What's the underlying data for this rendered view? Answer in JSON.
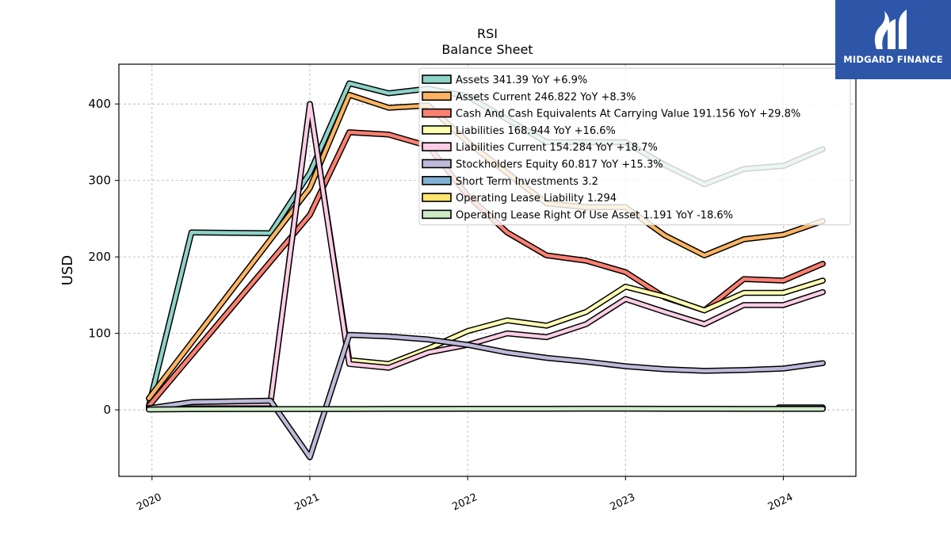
{
  "brand": {
    "name": "MIDGARD FINANCE",
    "bg_color": "#2d56a8"
  },
  "chart_data": {
    "type": "line",
    "title": "RSI",
    "subtitle": "Balance  Sheet",
    "ylabel": "USD",
    "xlabel": "",
    "ylim": [
      -87,
      452
    ],
    "yticks": [
      0,
      100,
      200,
      300,
      400
    ],
    "xlim": [
      2019.79,
      2024.46
    ],
    "xticks": [
      2020,
      2021,
      2022,
      2023,
      2024
    ],
    "xtick_labels": [
      "2020",
      "2021",
      "2022",
      "2023",
      "2024"
    ],
    "grid": true,
    "legend_position": "top-right",
    "series": [
      {
        "name": "Assets  341.39 YoY +6.9%",
        "color": "#8dd3c7",
        "x": [
          2019.98,
          2020.25,
          2020.75,
          2021.0,
          2021.25,
          2021.5,
          2021.75,
          2022.0,
          2022.25,
          2022.5,
          2022.75,
          2023.0,
          2023.25,
          2023.5,
          2023.75,
          2024.0,
          2024.25
        ],
        "y": [
          5,
          232,
          231,
          310,
          427,
          414,
          420,
          410,
          380,
          350,
          350,
          350,
          320,
          295,
          315,
          319,
          341
        ]
      },
      {
        "name": "Assets Current  246.822 YoY +8.3%",
        "color": "#fdb462",
        "x": [
          2019.98,
          2021.0,
          2021.25,
          2021.5,
          2021.75,
          2022.0,
          2022.25,
          2022.5,
          2022.75,
          2023.0,
          2023.25,
          2023.5,
          2023.75,
          2024.0,
          2024.25
        ],
        "y": [
          15,
          290,
          412,
          395,
          398,
          350,
          310,
          270,
          265,
          265,
          228,
          202,
          223,
          229,
          247
        ]
      },
      {
        "name": "Cash And Cash Equivalents At Carrying Value  191.156 YoY +29.8%",
        "color": "#fb8072",
        "x": [
          2019.98,
          2021.0,
          2021.25,
          2021.5,
          2021.75,
          2022.0,
          2022.25,
          2022.5,
          2022.75,
          2023.0,
          2023.25,
          2023.5,
          2023.75,
          2024.0,
          2024.25
        ],
        "y": [
          5,
          255,
          363,
          360,
          345,
          280,
          232,
          202,
          195,
          180,
          147,
          130,
          171,
          169,
          191
        ]
      },
      {
        "name": "Liabilities  168.944 YoY +16.6%",
        "color": "#ffffb3",
        "x": [
          2019.98,
          2020.25,
          2020.75,
          2021.0,
          2021.25,
          2021.5,
          2021.75,
          2022.0,
          2022.25,
          2022.5,
          2022.75,
          2023.0,
          2023.25,
          2023.5,
          2023.75,
          2024.0,
          2024.25
        ],
        "y": [
          2,
          8,
          8,
          400,
          65,
          60,
          80,
          103,
          117,
          110,
          128,
          161,
          148,
          130,
          153,
          153,
          169
        ]
      },
      {
        "name": "Liabilities Current  154.284 YoY +18.7%",
        "color": "#fccde5",
        "x": [
          2019.98,
          2020.25,
          2020.75,
          2021.0,
          2021.25,
          2021.5,
          2021.75,
          2022.0,
          2022.25,
          2022.5,
          2022.75,
          2023.0,
          2023.25,
          2023.5,
          2023.75,
          2024.0,
          2024.25
        ],
        "y": [
          2,
          8,
          8,
          400,
          60,
          55,
          75,
          85,
          100,
          95,
          112,
          145,
          128,
          112,
          137,
          137,
          154
        ]
      },
      {
        "name": "Stockholders Equity  60.817 YoY +15.3%",
        "color": "#bebada",
        "x": [
          2019.98,
          2020.25,
          2020.75,
          2021.0,
          2021.25,
          2021.5,
          2021.75,
          2022.0,
          2022.25,
          2022.5,
          2022.75,
          2023.0,
          2023.25,
          2023.5,
          2023.75,
          2024.0,
          2024.25
        ],
        "y": [
          2,
          10,
          12,
          -62,
          98,
          96,
          92,
          85,
          75,
          68,
          63,
          57,
          53,
          51,
          52,
          54,
          61
        ]
      },
      {
        "name": "Short Term Investments  3.2",
        "color": "#80b1d3",
        "x": [
          2023.97,
          2024.25
        ],
        "y": [
          3.2,
          3.2
        ]
      },
      {
        "name": "Operating Lease Liability  1.294",
        "color": "#fee56f",
        "x": [
          2023.97,
          2024.25
        ],
        "y": [
          1.3,
          1.3
        ]
      },
      {
        "name": "Operating Lease Right Of Use Asset  1.191 YoY -18.6%",
        "color": "#ccebc5",
        "x": [
          2019.98,
          2020.25,
          2020.75,
          2021.0,
          2021.25,
          2021.5,
          2021.75,
          2022.0,
          2022.25,
          2022.5,
          2022.75,
          2023.0,
          2023.25,
          2023.5,
          2023.75,
          2024.0,
          2024.25
        ],
        "y": [
          0.5,
          0.8,
          1,
          1,
          1,
          1.2,
          1.2,
          1.3,
          1.3,
          1.3,
          1.5,
          1.5,
          1.4,
          1.3,
          1.2,
          1.2,
          1.2
        ]
      }
    ]
  }
}
